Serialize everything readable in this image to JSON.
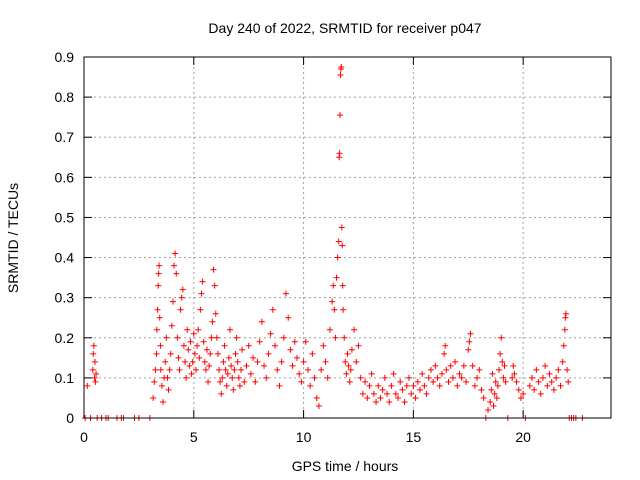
{
  "chart_data": {
    "type": "scatter",
    "title": "Day 240 of 2022, SRMTID for receiver p047",
    "xlabel": "GPS time / hours",
    "ylabel": "SRMTID / TECUs",
    "xlim": [
      0,
      24
    ],
    "ylim": [
      0,
      0.9
    ],
    "xticks": [
      0,
      5,
      10,
      15,
      20
    ],
    "yticks": [
      0,
      0.1,
      0.2,
      0.3,
      0.4,
      0.5,
      0.6,
      0.7,
      0.8,
      0.9
    ],
    "grid": true,
    "marker": "+",
    "series_color": "#ff0000",
    "series": [
      {
        "name": "SRMTID",
        "points": [
          [
            0.05,
            0
          ],
          [
            0.15,
            0.08
          ],
          [
            0.3,
            0
          ],
          [
            0.4,
            0.12
          ],
          [
            0.42,
            0.16
          ],
          [
            0.45,
            0.18
          ],
          [
            0.48,
            0.1
          ],
          [
            0.5,
            0.14
          ],
          [
            0.52,
            0.09
          ],
          [
            0.55,
            0.11
          ],
          [
            0.6,
            0
          ],
          [
            0.8,
            0
          ],
          [
            1.0,
            0
          ],
          [
            1.1,
            0
          ],
          [
            1.5,
            0
          ],
          [
            1.7,
            0
          ],
          [
            1.8,
            0
          ],
          [
            2.3,
            0
          ],
          [
            2.5,
            0
          ],
          [
            3.0,
            0
          ],
          [
            3.15,
            0.05
          ],
          [
            3.2,
            0.09
          ],
          [
            3.25,
            0.12
          ],
          [
            3.3,
            0.16
          ],
          [
            3.32,
            0.22
          ],
          [
            3.35,
            0.27
          ],
          [
            3.38,
            0.33
          ],
          [
            3.4,
            0.36
          ],
          [
            3.42,
            0.38
          ],
          [
            3.45,
            0.25
          ],
          [
            3.48,
            0.18
          ],
          [
            3.5,
            0.12
          ],
          [
            3.55,
            0.08
          ],
          [
            3.6,
            0.04
          ],
          [
            3.65,
            0.1
          ],
          [
            3.7,
            0.14
          ],
          [
            3.75,
            0.2
          ],
          [
            3.8,
            0.1
          ],
          [
            3.85,
            0.07
          ],
          [
            3.9,
            0.12
          ],
          [
            3.95,
            0.16
          ],
          [
            4.0,
            0.23
          ],
          [
            4.05,
            0.29
          ],
          [
            4.1,
            0.38
          ],
          [
            4.15,
            0.41
          ],
          [
            4.2,
            0.36
          ],
          [
            4.25,
            0.2
          ],
          [
            4.3,
            0.15
          ],
          [
            4.35,
            0.12
          ],
          [
            4.4,
            0.27
          ],
          [
            4.45,
            0.3
          ],
          [
            4.5,
            0.32
          ],
          [
            4.55,
            0.18
          ],
          [
            4.6,
            0.14
          ],
          [
            4.65,
            0.1
          ],
          [
            4.7,
            0.22
          ],
          [
            4.75,
            0.17
          ],
          [
            4.8,
            0.13
          ],
          [
            4.85,
            0.19
          ],
          [
            4.9,
            0.11
          ],
          [
            4.95,
            0.14
          ],
          [
            5.0,
            0.21
          ],
          [
            5.05,
            0.16
          ],
          [
            5.1,
            0.12
          ],
          [
            5.15,
            0.18
          ],
          [
            5.2,
            0.22
          ],
          [
            5.25,
            0.15
          ],
          [
            5.3,
            0.27
          ],
          [
            5.35,
            0.31
          ],
          [
            5.4,
            0.34
          ],
          [
            5.45,
            0.19
          ],
          [
            5.5,
            0.14
          ],
          [
            5.55,
            0.12
          ],
          [
            5.6,
            0.17
          ],
          [
            5.65,
            0.09
          ],
          [
            5.7,
            0.13
          ],
          [
            5.75,
            0.16
          ],
          [
            5.8,
            0.2
          ],
          [
            5.85,
            0.24
          ],
          [
            5.9,
            0.37
          ],
          [
            5.95,
            0.33
          ],
          [
            6.0,
            0.26
          ],
          [
            6.05,
            0.2
          ],
          [
            6.1,
            0.16
          ],
          [
            6.15,
            0.12
          ],
          [
            6.2,
            0.09
          ],
          [
            6.25,
            0.06
          ],
          [
            6.3,
            0.1
          ],
          [
            6.35,
            0.14
          ],
          [
            6.4,
            0.18
          ],
          [
            6.45,
            0.12
          ],
          [
            6.5,
            0.08
          ],
          [
            6.55,
            0.11
          ],
          [
            6.6,
            0.15
          ],
          [
            6.65,
            0.22
          ],
          [
            6.7,
            0.13
          ],
          [
            6.75,
            0.1
          ],
          [
            6.8,
            0.07
          ],
          [
            6.85,
            0.12
          ],
          [
            6.9,
            0.16
          ],
          [
            6.95,
            0.2
          ],
          [
            7.0,
            0.14
          ],
          [
            7.05,
            0.1
          ],
          [
            7.1,
            0.08
          ],
          [
            7.15,
            0.12
          ],
          [
            7.2,
            0.17
          ],
          [
            7.3,
            0.09
          ],
          [
            7.4,
            0.13
          ],
          [
            7.5,
            0.18
          ],
          [
            7.6,
            0.11
          ],
          [
            7.7,
            0.15
          ],
          [
            7.8,
            0.09
          ],
          [
            7.9,
            0.14
          ],
          [
            8.0,
            0.19
          ],
          [
            8.1,
            0.24
          ],
          [
            8.2,
            0.13
          ],
          [
            8.3,
            0.1
          ],
          [
            8.4,
            0.16
          ],
          [
            8.5,
            0.21
          ],
          [
            8.6,
            0.27
          ],
          [
            8.7,
            0.18
          ],
          [
            8.8,
            0.12
          ],
          [
            8.9,
            0.08
          ],
          [
            9.0,
            0.14
          ],
          [
            9.1,
            0.2
          ],
          [
            9.2,
            0.31
          ],
          [
            9.3,
            0.25
          ],
          [
            9.4,
            0.17
          ],
          [
            9.5,
            0.13
          ],
          [
            9.6,
            0.19
          ],
          [
            9.7,
            0.15
          ],
          [
            9.8,
            0.11
          ],
          [
            9.9,
            0.09
          ],
          [
            10.0,
            0.14
          ],
          [
            10.1,
            0.19
          ],
          [
            10.2,
            0.12
          ],
          [
            10.3,
            0.08
          ],
          [
            10.4,
            0.16
          ],
          [
            10.5,
            0.1
          ],
          [
            10.6,
            0.05
          ],
          [
            10.7,
            0.03
          ],
          [
            10.8,
            0.12
          ],
          [
            10.9,
            0.18
          ],
          [
            11.0,
            0.14
          ],
          [
            11.1,
            0.1
          ],
          [
            11.2,
            0.22
          ],
          [
            11.3,
            0.29
          ],
          [
            11.35,
            0.33
          ],
          [
            11.4,
            0.27
          ],
          [
            11.45,
            0.2
          ],
          [
            11.5,
            0.35
          ],
          [
            11.55,
            0.4
          ],
          [
            11.6,
            0.44
          ],
          [
            11.62,
            0.65
          ],
          [
            11.64,
            0.66
          ],
          [
            11.66,
            0.755
          ],
          [
            11.68,
            0.855
          ],
          [
            11.7,
            0.87
          ],
          [
            11.72,
            0.875
          ],
          [
            11.74,
            0.475
          ],
          [
            11.76,
            0.43
          ],
          [
            11.78,
            0.33
          ],
          [
            11.8,
            0.27
          ],
          [
            11.85,
            0.2
          ],
          [
            11.9,
            0.14
          ],
          [
            11.95,
            0.11
          ],
          [
            12.0,
            0.16
          ],
          [
            12.05,
            0.13
          ],
          [
            12.1,
            0.09
          ],
          [
            12.15,
            0.12
          ],
          [
            12.2,
            0.17
          ],
          [
            12.3,
            0.22
          ],
          [
            12.4,
            0.14
          ],
          [
            12.5,
            0.18
          ],
          [
            12.6,
            0.1
          ],
          [
            12.7,
            0.06
          ],
          [
            12.8,
            0.09
          ],
          [
            12.9,
            0.05
          ],
          [
            13.0,
            0.08
          ],
          [
            13.1,
            0.11
          ],
          [
            13.2,
            0.06
          ],
          [
            13.3,
            0.04
          ],
          [
            13.4,
            0.08
          ],
          [
            13.5,
            0.05
          ],
          [
            13.6,
            0.07
          ],
          [
            13.7,
            0.1
          ],
          [
            13.8,
            0.06
          ],
          [
            13.9,
            0.04
          ],
          [
            14.0,
            0.08
          ],
          [
            14.1,
            0.11
          ],
          [
            14.2,
            0.06
          ],
          [
            14.3,
            0.05
          ],
          [
            14.4,
            0.09
          ],
          [
            14.5,
            0.07
          ],
          [
            14.6,
            0.04
          ],
          [
            14.7,
            0.08
          ],
          [
            14.8,
            0.1
          ],
          [
            14.9,
            0.06
          ],
          [
            15.0,
            0.08
          ],
          [
            15.1,
            0.05
          ],
          [
            15.2,
            0.09
          ],
          [
            15.3,
            0.07
          ],
          [
            15.4,
            0.11
          ],
          [
            15.5,
            0.08
          ],
          [
            15.6,
            0.06
          ],
          [
            15.7,
            0.1
          ],
          [
            15.8,
            0.12
          ],
          [
            15.9,
            0.09
          ],
          [
            16.0,
            0.13
          ],
          [
            16.1,
            0.1
          ],
          [
            16.2,
            0.08
          ],
          [
            16.3,
            0.11
          ],
          [
            16.4,
            0.16
          ],
          [
            16.45,
            0.18
          ],
          [
            16.5,
            0.12
          ],
          [
            16.6,
            0.09
          ],
          [
            16.7,
            0.13
          ],
          [
            16.8,
            0.1
          ],
          [
            16.9,
            0.14
          ],
          [
            17.0,
            0.08
          ],
          [
            17.1,
            0.11
          ],
          [
            17.2,
            0.1
          ],
          [
            17.3,
            0.13
          ],
          [
            17.4,
            0.09
          ],
          [
            17.5,
            0.17
          ],
          [
            17.55,
            0.19
          ],
          [
            17.6,
            0.21
          ],
          [
            17.7,
            0.13
          ],
          [
            17.8,
            0.08
          ],
          [
            17.9,
            0.1
          ],
          [
            18.0,
            0.12
          ],
          [
            18.1,
            0.07
          ],
          [
            18.2,
            0.05
          ],
          [
            18.3,
            0
          ],
          [
            18.4,
            0.02
          ],
          [
            18.5,
            0.04
          ],
          [
            18.55,
            0.07
          ],
          [
            18.6,
            0.11
          ],
          [
            18.65,
            0.03
          ],
          [
            18.7,
            0.06
          ],
          [
            18.75,
            0.09
          ],
          [
            18.8,
            0.05
          ],
          [
            18.85,
            0.08
          ],
          [
            18.9,
            0.12
          ],
          [
            18.95,
            0.16
          ],
          [
            19.0,
            0.2
          ],
          [
            19.05,
            0.14
          ],
          [
            19.1,
            0.1
          ],
          [
            19.15,
            0.13
          ],
          [
            19.2,
            0.09
          ],
          [
            19.3,
            0
          ],
          [
            19.5,
            0.1
          ],
          [
            19.55,
            0.13
          ],
          [
            19.6,
            0.11
          ],
          [
            19.7,
            0.09
          ],
          [
            19.8,
            0.07
          ],
          [
            19.9,
            0.05
          ],
          [
            20.0,
            0.06
          ],
          [
            20.1,
            0
          ],
          [
            20.3,
            0.08
          ],
          [
            20.4,
            0.1
          ],
          [
            20.5,
            0.07
          ],
          [
            20.6,
            0.12
          ],
          [
            20.7,
            0.09
          ],
          [
            20.8,
            0.06
          ],
          [
            20.9,
            0.1
          ],
          [
            21.0,
            0.13
          ],
          [
            21.1,
            0.08
          ],
          [
            21.2,
            0.11
          ],
          [
            21.3,
            0.09
          ],
          [
            21.4,
            0.07
          ],
          [
            21.5,
            0.1
          ],
          [
            21.6,
            0.12
          ],
          [
            21.7,
            0.08
          ],
          [
            21.8,
            0.14
          ],
          [
            21.85,
            0.18
          ],
          [
            21.9,
            0.22
          ],
          [
            21.92,
            0.25
          ],
          [
            21.95,
            0.26
          ],
          [
            22.0,
            0.12
          ],
          [
            22.05,
            0.09
          ],
          [
            22.1,
            0
          ],
          [
            22.2,
            0
          ],
          [
            22.3,
            0
          ],
          [
            22.4,
            0
          ],
          [
            22.7,
            0
          ]
        ]
      }
    ]
  }
}
